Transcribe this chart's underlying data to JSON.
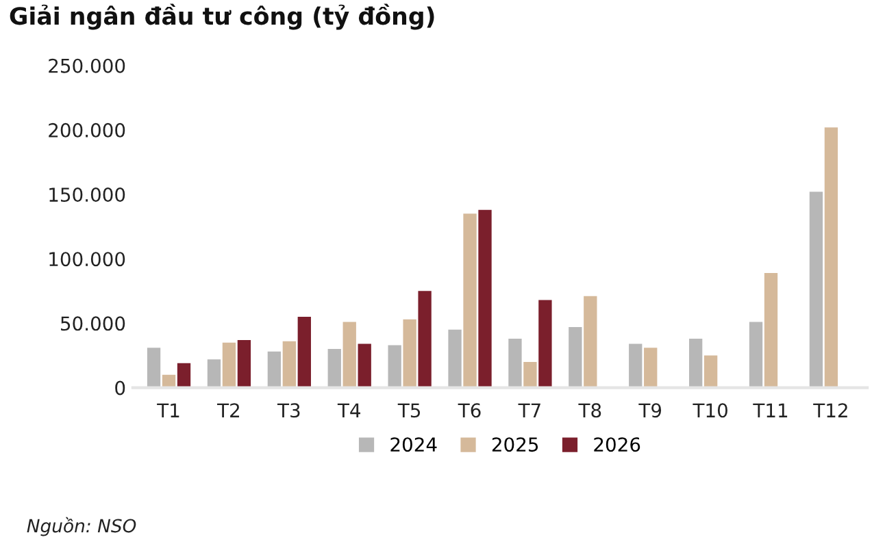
{
  "chart_data": {
    "type": "bar",
    "title": "Giải ngân đầu tư công (tỷ đồng)",
    "categories": [
      "T1",
      "T2",
      "T3",
      "T4",
      "T5",
      "T6",
      "T7",
      "T8",
      "T9",
      "T10",
      "T11",
      "T12"
    ],
    "series": [
      {
        "name": "2024",
        "color": "#b7b7b7",
        "values": [
          31000,
          22000,
          28000,
          30000,
          33000,
          45000,
          38000,
          47000,
          34000,
          38000,
          51000,
          152000
        ]
      },
      {
        "name": "2025",
        "color": "#d5b99a",
        "values": [
          10000,
          35000,
          36000,
          51000,
          53000,
          135000,
          20000,
          71000,
          31000,
          25000,
          89000,
          202000
        ]
      },
      {
        "name": "2026",
        "color": "#7b1f2c",
        "values": [
          19000,
          37000,
          55000,
          34000,
          75000,
          138000,
          68000,
          null,
          null,
          null,
          null,
          null
        ]
      }
    ],
    "ylim": [
      0,
      250000
    ],
    "yticks": [
      {
        "value": 0,
        "label": "0"
      },
      {
        "value": 50000,
        "label": "50.000"
      },
      {
        "value": 100000,
        "label": "100.000"
      },
      {
        "value": 150000,
        "label": "150.000"
      },
      {
        "value": 200000,
        "label": "200.000"
      },
      {
        "value": 250000,
        "label": "250.000"
      }
    ],
    "grid": false,
    "legend": "bottom",
    "annotations": [
      "Nguồn: NSO"
    ]
  }
}
